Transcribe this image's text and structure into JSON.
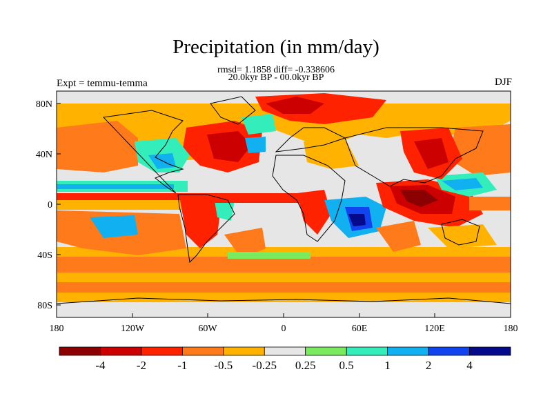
{
  "header": {
    "title": "Precipitation (in mm/day)",
    "stats": "rmsd= 1.1858 diff= -0.338606",
    "period": "20.0kyr BP - 00.0kyr BP",
    "experiment": "Expt = temmu-temma",
    "season": "DJF"
  },
  "axes": {
    "lat_ticks": [
      "80N",
      "40N",
      "0",
      "40S",
      "80S"
    ],
    "lon_ticks": [
      "180",
      "120W",
      "60W",
      "0",
      "60E",
      "120E",
      "180"
    ]
  },
  "colorbar": {
    "tick_labels": [
      "-4",
      "-2",
      "-1",
      "-0.5",
      "-0.25",
      "0.25",
      "0.5",
      "1",
      "2",
      "4"
    ],
    "bins": [
      {
        "range": "< -4",
        "color": "#8b0000"
      },
      {
        "range": "-4 to -2",
        "color": "#cc0000"
      },
      {
        "range": "-2 to -1",
        "color": "#ff2200"
      },
      {
        "range": "-1 to -0.5",
        "color": "#ff7a1a"
      },
      {
        "range": "-0.5 to -0.25",
        "color": "#ffb300"
      },
      {
        "range": "-0.25 to 0.25",
        "color": "#e6e6e6"
      },
      {
        "range": "0.25 to 0.5",
        "color": "#7aea5e"
      },
      {
        "range": "0.5 to 1",
        "color": "#33eebb"
      },
      {
        "range": "1 to 2",
        "color": "#11b0f0"
      },
      {
        "range": "2 to 4",
        "color": "#1144ee"
      },
      {
        "range": "> 4",
        "color": "#050a8a"
      }
    ]
  }
}
